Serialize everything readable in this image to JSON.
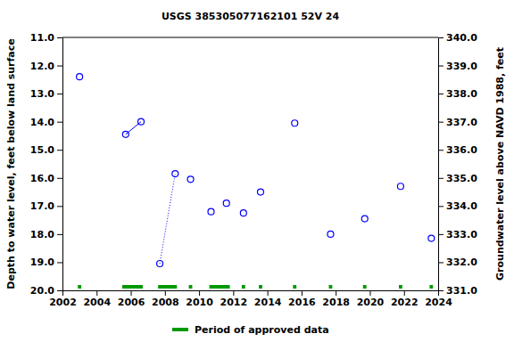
{
  "chart_data": {
    "type": "scatter",
    "title": "USGS 385305077162101 52V 24",
    "x_label": "",
    "y_label": "Depth to water level, feet below land surface",
    "y2_label": "Groundwater level above NAVD 1988, feet",
    "xlim": [
      2002,
      2024
    ],
    "xticks": [
      2002,
      2004,
      2006,
      2008,
      2010,
      2012,
      2014,
      2016,
      2018,
      2020,
      2022,
      2024
    ],
    "ylim": [
      11,
      20
    ],
    "yticks": [
      {
        "value": 11,
        "label": "11.0"
      },
      {
        "value": 12,
        "label": "12.0"
      },
      {
        "value": 13,
        "label": "13.0"
      },
      {
        "value": 14,
        "label": "14.0"
      },
      {
        "value": 15,
        "label": "15.0"
      },
      {
        "value": 16,
        "label": "16.0"
      },
      {
        "value": 17,
        "label": "17.0"
      },
      {
        "value": 18,
        "label": "18.0"
      },
      {
        "value": 19,
        "label": "19.0"
      },
      {
        "value": 20,
        "label": "20.0"
      }
    ],
    "y2lim": [
      340,
      331
    ],
    "y2ticks": [
      {
        "value": 340,
        "label": "340.0"
      },
      {
        "value": 339,
        "label": "339.0"
      },
      {
        "value": 338,
        "label": "338.0"
      },
      {
        "value": 337,
        "label": "337.0"
      },
      {
        "value": 336,
        "label": "336.0"
      },
      {
        "value": 335,
        "label": "335.0"
      },
      {
        "value": 334,
        "label": "334.0"
      },
      {
        "value": 333,
        "label": "333.0"
      },
      {
        "value": 332,
        "label": "332.0"
      },
      {
        "value": 331,
        "label": "331.0"
      }
    ],
    "grid": false,
    "legend": "bottom",
    "series": [
      {
        "type": "scatter",
        "marker": "open-circle",
        "color": "#0000ff",
        "x": [
          2003.0,
          2005.7,
          2006.6,
          2007.7,
          2008.6,
          2009.5,
          2010.7,
          2011.6,
          2012.6,
          2013.6,
          2015.6,
          2017.7,
          2019.7,
          2021.8,
          2023.6
        ],
        "values": [
          12.4,
          14.45,
          14.0,
          19.05,
          15.85,
          16.05,
          17.2,
          16.9,
          17.25,
          16.5,
          14.05,
          18.0,
          17.45,
          16.3,
          18.15
        ]
      },
      {
        "type": "line",
        "line_style": "solid",
        "color": "#0000ff",
        "x": [
          2005.7,
          2006.6
        ],
        "values": [
          14.45,
          14.0
        ]
      },
      {
        "type": "line",
        "line_style": "dotted",
        "color": "#0000ff",
        "x": [
          2007.7,
          2008.6
        ],
        "values": [
          19.05,
          15.85
        ]
      },
      {
        "name": "Period of approved data",
        "type": "span",
        "color": "#009900",
        "x": [
          2002.9,
          2005.5,
          2007.6,
          2009.4,
          2010.6,
          2012.5,
          2013.5,
          2015.5,
          2017.6,
          2019.6,
          2021.7,
          2023.5
        ],
        "x_end": [
          2003.1,
          2006.7,
          2008.7,
          2009.6,
          2011.8,
          2012.7,
          2013.7,
          2015.7,
          2017.8,
          2019.8,
          2021.9,
          2023.7
        ]
      }
    ]
  }
}
